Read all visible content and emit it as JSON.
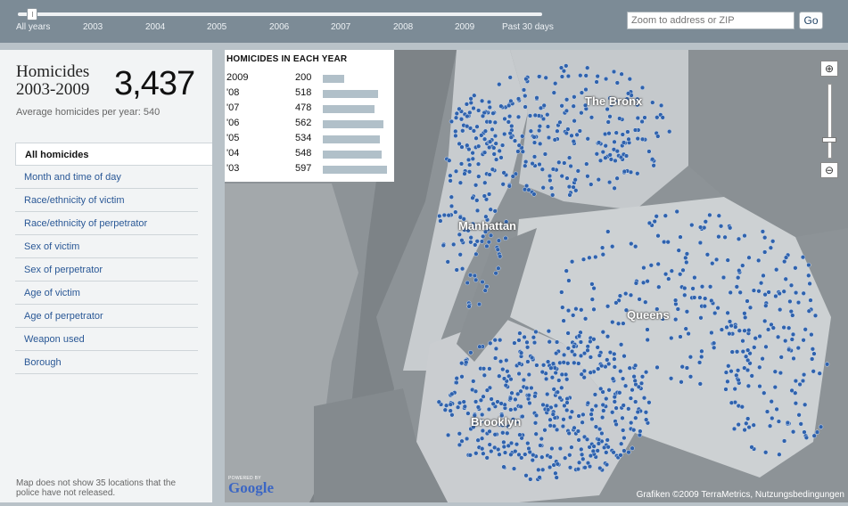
{
  "timeline": {
    "labels": [
      "All years",
      "2003",
      "2004",
      "2005",
      "2006",
      "2007",
      "2008",
      "2009",
      "Past 30 days"
    ],
    "selected": "All years"
  },
  "search": {
    "placeholder": "Zoom to address or ZIP",
    "button_label": "Go"
  },
  "summary": {
    "title_line1": "Homicides",
    "title_line2": "2003-2009",
    "total": "3,437",
    "average_text": "Average homicides per year: 540"
  },
  "menu": {
    "items": [
      {
        "label": "All homicides",
        "active": true
      },
      {
        "label": "Month and time of day"
      },
      {
        "label": "Race/ethnicity of victim"
      },
      {
        "label": "Race/ethnicity of perpetrator"
      },
      {
        "label": "Sex of victim"
      },
      {
        "label": "Sex of perpetrator"
      },
      {
        "label": "Age of victim"
      },
      {
        "label": "Age of perpetrator"
      },
      {
        "label": "Weapon used"
      },
      {
        "label": "Borough"
      }
    ]
  },
  "footnote": "Map does not show 35 locations that the police have not released.",
  "stats": {
    "title": "HOMICIDES IN EACH YEAR",
    "rows": [
      {
        "year": "2009",
        "count": "200",
        "value": 200
      },
      {
        "year": "'08",
        "count": "518",
        "value": 518
      },
      {
        "year": "'07",
        "count": "478",
        "value": 478
      },
      {
        "year": "'06",
        "count": "562",
        "value": 562
      },
      {
        "year": "'05",
        "count": "534",
        "value": 534
      },
      {
        "year": "'04",
        "count": "548",
        "value": 548
      },
      {
        "year": "'03",
        "count": "597",
        "value": 597
      }
    ]
  },
  "map": {
    "labels": [
      "The Bronx",
      "Manhattan",
      "Queens",
      "Brooklyn"
    ],
    "powered_by": "POWERED BY",
    "google_logo": "Google",
    "attribution": "Grafiken ©2009 TerraMetrics, Nutzungsbedingungen",
    "dot_color": "#2f62ad",
    "zoom_in_icon": "magnifier-plus-icon",
    "zoom_out_icon": "magnifier-minus-icon"
  },
  "colors": {
    "topbar": "#7c8b96",
    "link": "#2a5896",
    "bar": "#b1c0c9"
  }
}
